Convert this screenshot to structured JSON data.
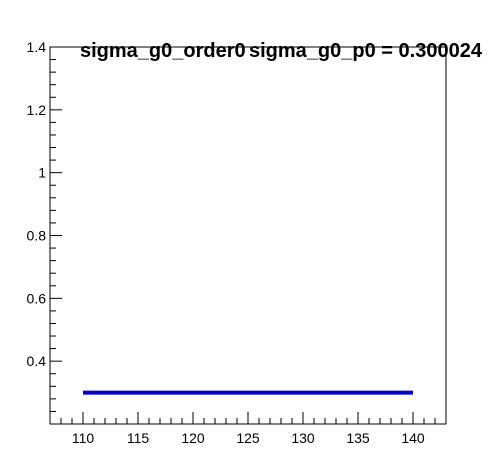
{
  "chart_data": {
    "type": "line",
    "title": "sigma_g0_order0",
    "annotation": "sigma_g0_p0 = 0.300024",
    "xlabel": "",
    "ylabel": "",
    "xlim": [
      107,
      143
    ],
    "ylim": [
      0.2,
      1.4
    ],
    "x_ticks": [
      110,
      115,
      120,
      125,
      130,
      135,
      140
    ],
    "y_ticks": [
      0.4,
      0.6,
      0.8,
      1,
      1.2,
      1.4
    ],
    "grid": false,
    "series": [
      {
        "x": [
          110,
          140
        ],
        "y": [
          0.300024,
          0.300024
        ],
        "color": "#0000cc"
      }
    ]
  }
}
